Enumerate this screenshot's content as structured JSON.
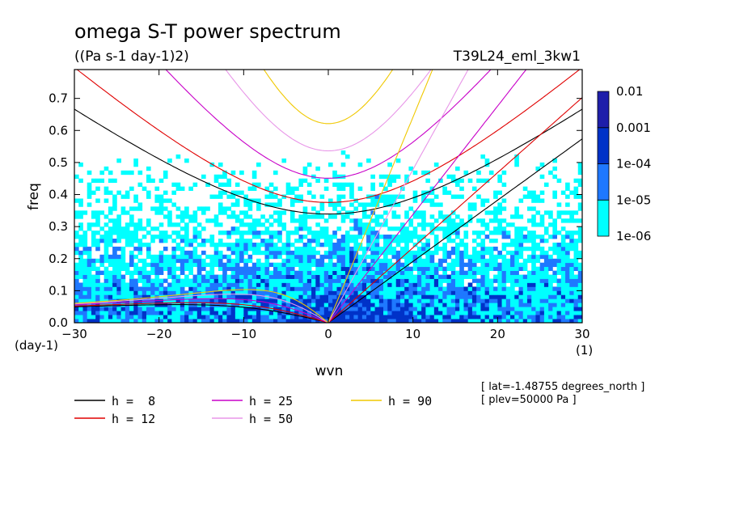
{
  "chart_data": {
    "type": "heatmap",
    "title": "omega S-T power spectrum",
    "subtitle": "((Pa s-1 day-1)2)",
    "dataset": "T39L24_eml_3kw1",
    "xlabel": "wvn",
    "xunits": "(1)",
    "ylabel": "freq",
    "yunits": "(day-1)",
    "xlim": [
      -30,
      30
    ],
    "ylim": [
      0,
      0.79
    ],
    "x_ticks": [
      -30,
      -20,
      -10,
      0,
      10,
      20,
      30
    ],
    "y_ticks": [
      0.0,
      0.1,
      0.2,
      0.3,
      0.4,
      0.5,
      0.6,
      0.7
    ],
    "colorbar": {
      "levels": [
        "1e-06",
        "1e-05",
        "1e-04",
        "0.001",
        "0.01"
      ],
      "colors": [
        "#00ffff",
        "#1e78ff",
        "#0032c8",
        "#1e1eaa",
        "#5a14b4"
      ]
    },
    "dispersion_curves": [
      {
        "label": "h =  8",
        "h": 8,
        "color": "#000000"
      },
      {
        "label": "h = 12",
        "h": 12,
        "color": "#e00000"
      },
      {
        "label": "h = 25",
        "h": 25,
        "color": "#c800c8"
      },
      {
        "label": "h = 50",
        "h": 50,
        "color": "#e896e8"
      },
      {
        "label": "h = 90",
        "h": 90,
        "color": "#f0c800"
      }
    ],
    "annotations": [
      "[ lat=-1.48755 degrees_north ]",
      "[ plev=50000 Pa ]"
    ]
  }
}
